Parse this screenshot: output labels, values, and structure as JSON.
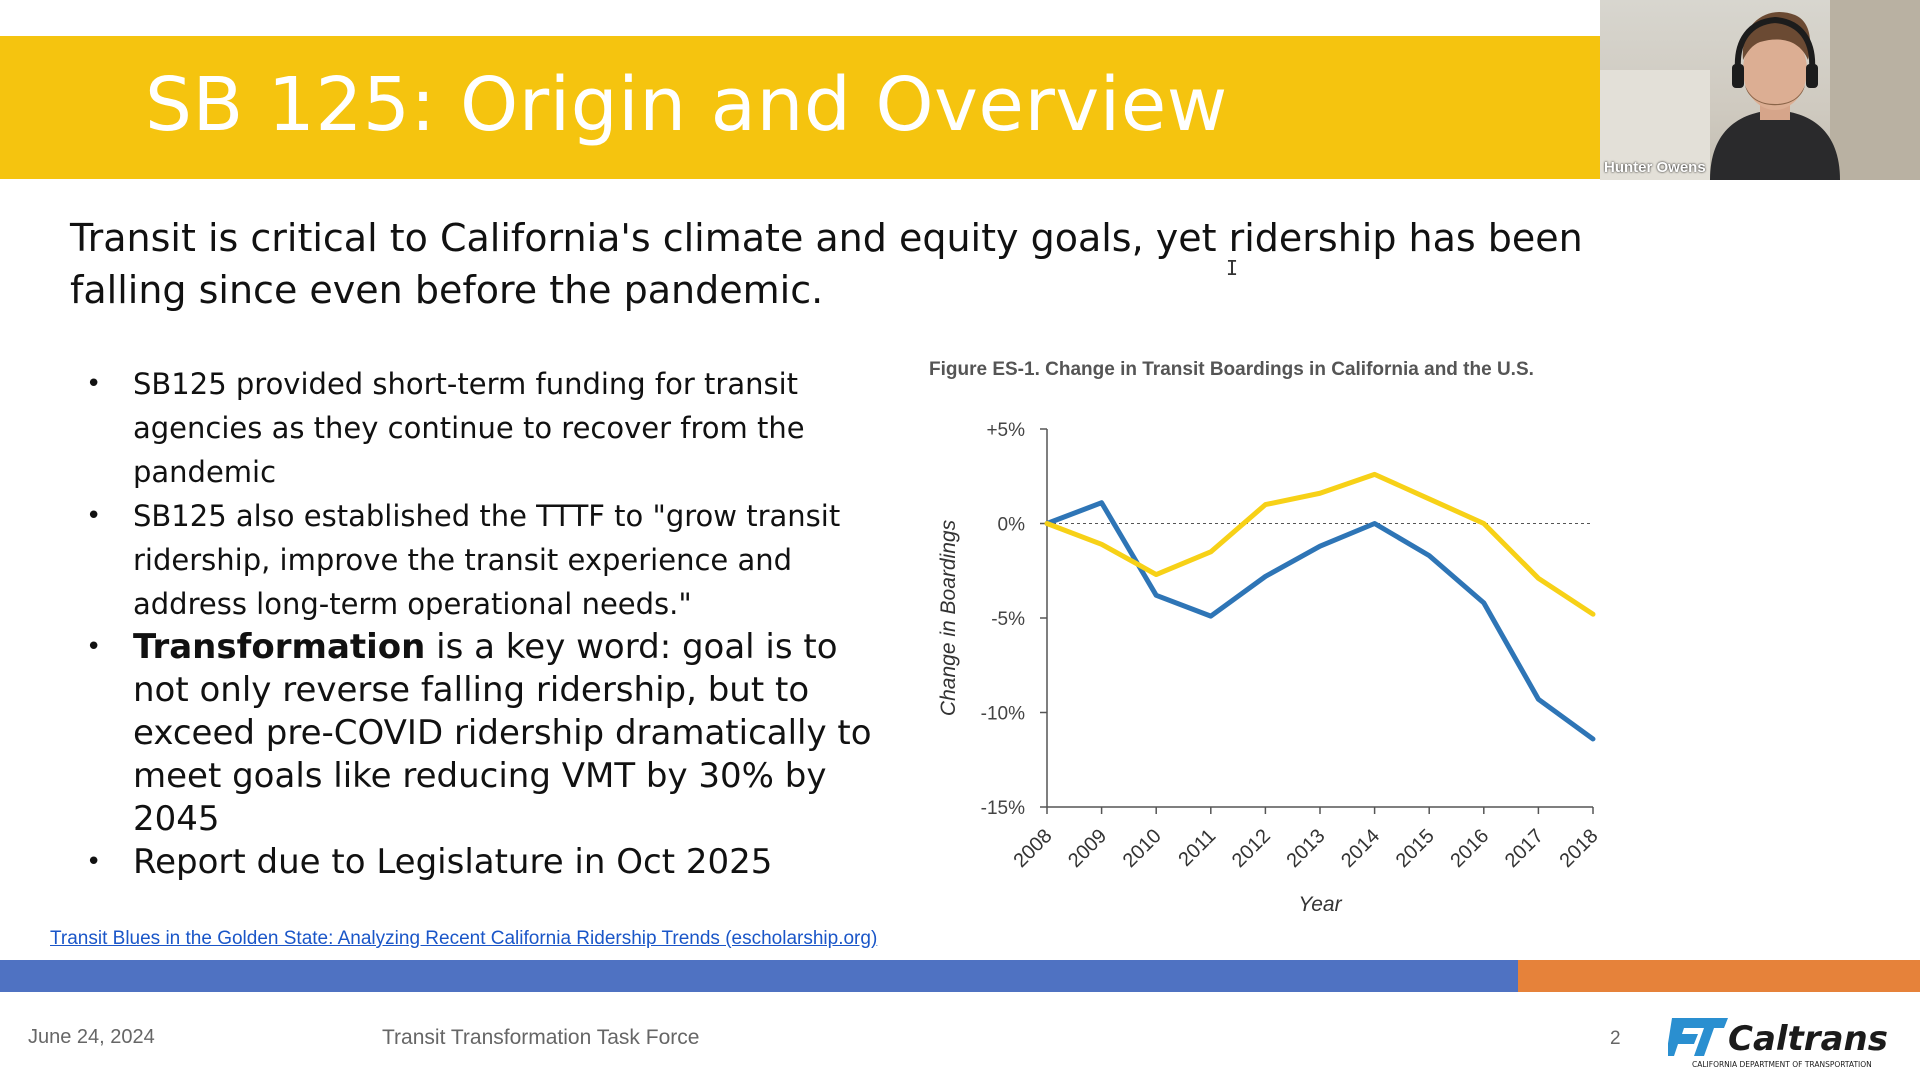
{
  "slide": {
    "title": "SB 125: Origin and Overview",
    "headline": "Transit is critical to California's climate and equity goals, yet ridership has been falling since even before the pandemic.",
    "bullets": [
      {
        "text": "SB125 provided short-term funding for transit agencies as they continue to recover from the pandemic"
      },
      {
        "text": "SB125 also established the TTTF to \"grow transit ridership, improve the transit experience and address long-term operational needs.\""
      },
      {
        "bold": "Transformation",
        "text": " is a key word: goal is to not only reverse falling ridership, but to exceed pre-COVID ridership dramatically to meet goals like reducing VMT by 30% by 2045"
      },
      {
        "text": "Report due to Legislature in Oct 2025"
      }
    ],
    "bullet_glyph": "•",
    "source_link": "Transit Blues in the Golden State: Analyzing Recent California Ridership Trends (escholarship.org)",
    "footer": {
      "date": "June 24, 2024",
      "center": "Transit Transformation Task Force",
      "page": "2"
    },
    "logo": {
      "name": "Caltrans",
      "subtitle": "CALIFORNIA DEPARTMENT OF TRANSPORTATION"
    }
  },
  "video": {
    "participant": "Hunter Owens"
  },
  "colors": {
    "title_bar": "#f5c40f",
    "band_blue": "#4f72c2",
    "band_orange": "#e6823a",
    "california": "#2e75b6",
    "us": "#f7d117",
    "link": "#1a56c8"
  },
  "chart_data": {
    "type": "line",
    "title": "Figure ES-1.  Change in Transit Boardings in California and the U.S.",
    "xlabel": "Year",
    "ylabel": "Change in Boardings",
    "x": [
      "2008",
      "2009",
      "2010",
      "2011",
      "2012",
      "2013",
      "2014",
      "2015",
      "2016",
      "2017",
      "2018"
    ],
    "y_ticks": [
      "+5%",
      "0%",
      "-5%",
      "-10%",
      "-15%"
    ],
    "y_tick_values": [
      5,
      0,
      -5,
      -10,
      -15
    ],
    "ylim": [
      -15,
      5
    ],
    "reference_line": 0,
    "legend_position": "right",
    "series": [
      {
        "name": "California",
        "color": "#2e75b6",
        "values": [
          0,
          1.1,
          -3.8,
          -4.9,
          -2.8,
          -1.2,
          0,
          -1.7,
          -4.2,
          -9.3,
          -11.4
        ]
      },
      {
        "name": "U.S.",
        "color": "#f7d117",
        "values": [
          0,
          -1.1,
          -2.7,
          -1.5,
          1.0,
          1.6,
          2.6,
          1.3,
          0,
          -2.9,
          -4.8
        ]
      }
    ]
  }
}
